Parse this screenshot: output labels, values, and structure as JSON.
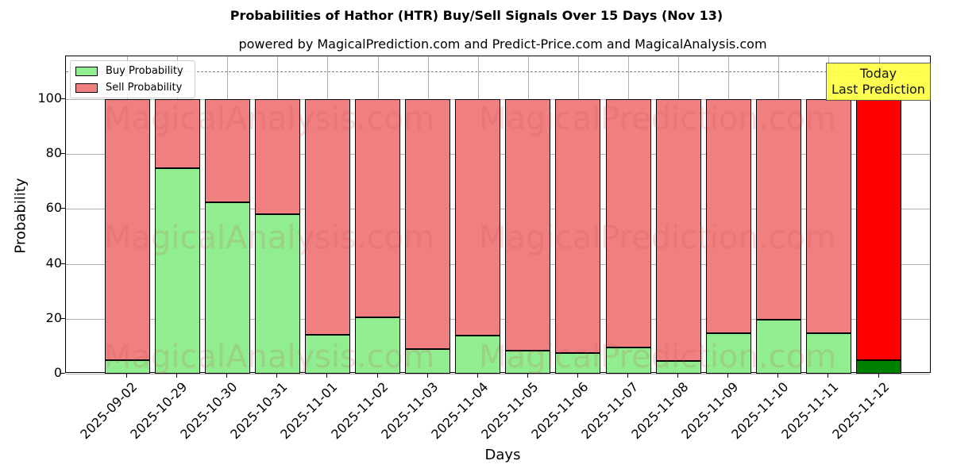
{
  "chart_data": {
    "type": "bar",
    "stacked": true,
    "title": "Probabilities of Hathor (HTR) Buy/Sell Signals Over 15 Days (Nov 13)",
    "subtitle": "powered by MagicalPrediction.com and Predict-Price.com and MagicalAnalysis.com",
    "xlabel": "Days",
    "ylabel": "Probability",
    "ylim": [
      0,
      115
    ],
    "yticks": [
      0,
      20,
      40,
      60,
      80,
      100
    ],
    "grid": true,
    "legend_position": "upper left",
    "reference_line": 110,
    "categories": [
      "2025-09-02",
      "2025-10-29",
      "2025-10-30",
      "2025-10-31",
      "2025-11-01",
      "2025-11-02",
      "2025-11-03",
      "2025-11-04",
      "2025-11-05",
      "2025-11-06",
      "2025-11-07",
      "2025-11-08",
      "2025-11-09",
      "2025-11-10",
      "2025-11-11",
      "2025-11-12"
    ],
    "series": [
      {
        "name": "Buy Probability",
        "color": "#90ee90",
        "values": [
          4.9,
          74.9,
          62.4,
          58.1,
          14.2,
          20.5,
          9.0,
          13.9,
          8.4,
          7.5,
          9.5,
          4.6,
          14.7,
          19.7,
          14.7,
          4.9
        ]
      },
      {
        "name": "Sell Probability",
        "color": "#f08080",
        "values": [
          95.1,
          25.1,
          37.6,
          41.9,
          85.8,
          79.5,
          91.0,
          86.1,
          91.6,
          92.5,
          90.5,
          95.4,
          85.3,
          80.3,
          85.3,
          95.1
        ]
      }
    ],
    "highlight": {
      "index": 15,
      "buy_color": "#008000",
      "sell_color": "#ff0000",
      "annotation": "Today\nLast Prediction"
    },
    "watermarks": [
      "MagicalAnalysis.com",
      "MagicalPrediction.com"
    ]
  },
  "legend": {
    "buy": "Buy Probability",
    "sell": "Sell Probability"
  },
  "annotation": {
    "line1": "Today",
    "line2": "Last Prediction"
  }
}
